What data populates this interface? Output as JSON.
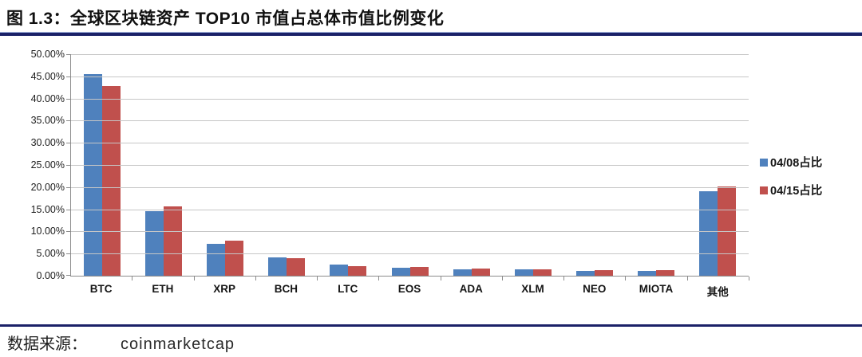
{
  "header": {
    "title": "图 1.3：全球区块链资产 TOP10 市值占总体市值比例变化"
  },
  "footer": {
    "source_label": "数据来源：",
    "source_value": "coinmarketcap"
  },
  "colors": {
    "series1_blue": "#4F81BD",
    "series2_red": "#C0504D",
    "rule_navy": "#1B2168",
    "gridline_gray": "#C6C6C6",
    "axis_gray": "#8C8C8C"
  },
  "chart_data": {
    "type": "bar",
    "title": "",
    "xlabel": "",
    "ylabel": "",
    "categories": [
      "BTC",
      "ETH",
      "XRP",
      "BCH",
      "LTC",
      "EOS",
      "ADA",
      "XLM",
      "NEO",
      "MIOTA",
      "其他"
    ],
    "series": [
      {
        "name": "04/08占比",
        "color": "#4F81BD",
        "values": [
          45.6,
          14.6,
          7.3,
          4.2,
          2.5,
          1.8,
          1.5,
          1.4,
          1.1,
          1.1,
          19.2
        ]
      },
      {
        "name": "04/15占比",
        "color": "#C0504D",
        "values": [
          42.9,
          15.7,
          7.9,
          3.9,
          2.1,
          2.0,
          1.6,
          1.5,
          1.2,
          1.2,
          20.2
        ]
      }
    ],
    "ylim": [
      0,
      50
    ],
    "ytick_step": 5,
    "yticks": [
      "0.00%",
      "5.00%",
      "10.00%",
      "15.00%",
      "20.00%",
      "25.00%",
      "30.00%",
      "35.00%",
      "40.00%",
      "45.00%",
      "50.00%"
    ],
    "grid": true,
    "legend_position": "right"
  }
}
